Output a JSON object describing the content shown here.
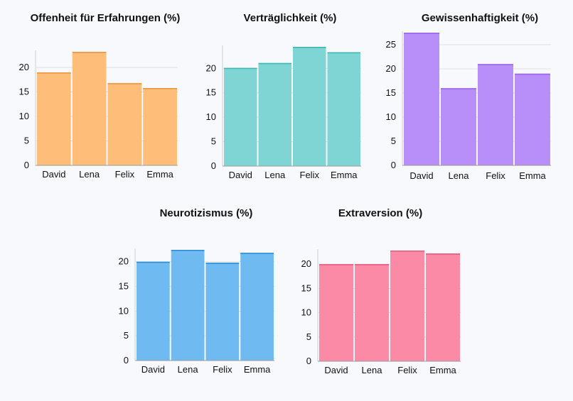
{
  "chart_data": [
    {
      "type": "bar",
      "title": "Offenheit für Erfahrungen (%)",
      "categories": [
        "David",
        "Lena",
        "Felix",
        "Emma"
      ],
      "values": [
        19,
        23.2,
        16.8,
        15.8
      ],
      "ylim": [
        0,
        23.2
      ],
      "yticks": [
        0,
        5,
        10,
        15,
        20
      ],
      "color": "#ffbd7a",
      "edge": "#e89840",
      "grid": true
    },
    {
      "type": "bar",
      "title": "Verträglichkeit (%)",
      "categories": [
        "David",
        "Lena",
        "Felix",
        "Emma"
      ],
      "values": [
        20.1,
        21.1,
        24.4,
        23.3
      ],
      "ylim": [
        0,
        24.4
      ],
      "yticks": [
        0,
        5,
        10,
        15,
        20
      ],
      "color": "#7fd5d3",
      "edge": "#3eb8b4",
      "grid": true
    },
    {
      "type": "bar",
      "title": "Gewissenhaftigkeit (%)",
      "categories": [
        "David",
        "Lena",
        "Felix",
        "Emma"
      ],
      "values": [
        27.5,
        16,
        21,
        19
      ],
      "ylim": [
        0,
        27.5
      ],
      "yticks": [
        0,
        5,
        10,
        15,
        20,
        25
      ],
      "color": "#b88ef9",
      "edge": "#9a66ea",
      "grid": true
    },
    {
      "type": "bar",
      "title": "Neurotizismus (%)",
      "categories": [
        "David",
        "Lena",
        "Felix",
        "Emma"
      ],
      "values": [
        20,
        22.4,
        19.8,
        21.8
      ],
      "ylim": [
        0,
        22.4
      ],
      "yticks": [
        0,
        5,
        10,
        15,
        20
      ],
      "color": "#6fbaf0",
      "edge": "#2f8fd6",
      "grid": true
    },
    {
      "type": "bar",
      "title": "Extraversion (%)",
      "categories": [
        "David",
        "Lena",
        "Felix",
        "Emma"
      ],
      "values": [
        20,
        20,
        22.8,
        22.2
      ],
      "ylim": [
        0,
        22.8
      ],
      "yticks": [
        0,
        5,
        10,
        15,
        20
      ],
      "color": "#fb8aa6",
      "edge": "#e8607f",
      "grid": true
    }
  ]
}
